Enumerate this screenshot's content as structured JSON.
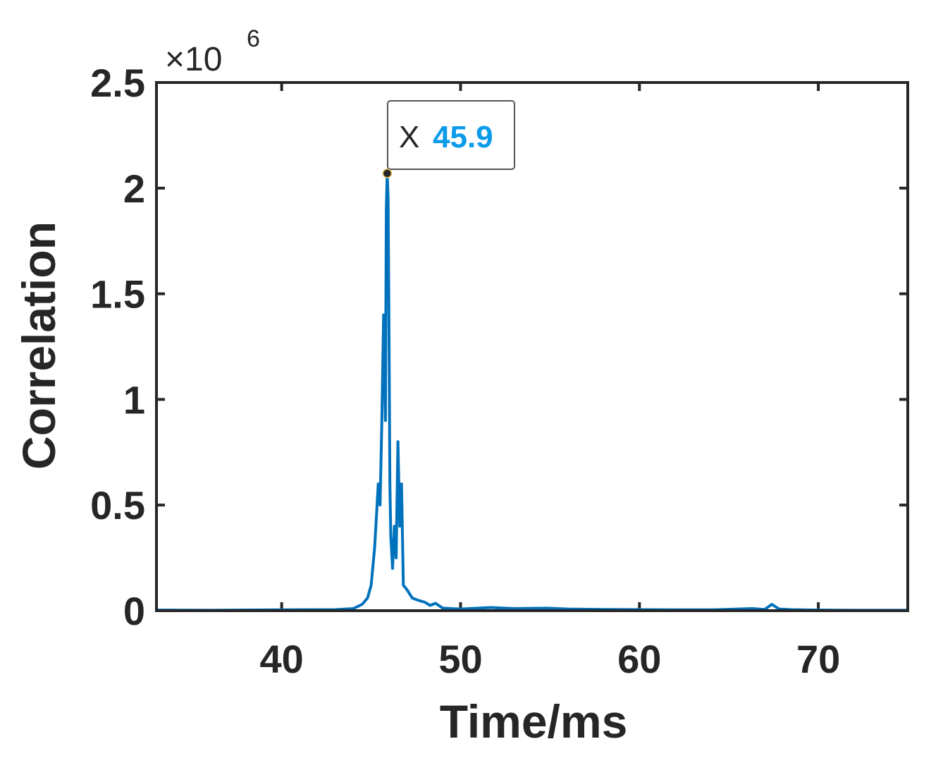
{
  "chart_data": {
    "type": "line",
    "xlabel": "Time/ms",
    "ylabel": "Correlation",
    "xlim": [
      33,
      75
    ],
    "ylim": [
      0,
      2.5
    ],
    "y_exponent_label": {
      "base": "×10",
      "power": "6"
    },
    "x_ticks": [
      40,
      50,
      60,
      70
    ],
    "x_tick_labels": [
      "40",
      "50",
      "60",
      "70"
    ],
    "y_ticks": [
      0,
      0.5,
      1,
      1.5,
      2,
      2.5
    ],
    "y_tick_labels": [
      "0",
      "0.5",
      "1",
      "1.5",
      "2",
      "2.5"
    ],
    "grid": false,
    "series": [
      {
        "color": "#0072bd",
        "x": [
          33,
          36,
          40,
          43,
          44,
          44.5,
          44.8,
          45.0,
          45.2,
          45.4,
          45.5,
          45.6,
          45.7,
          45.8,
          45.85,
          45.9,
          45.95,
          46.0,
          46.05,
          46.1,
          46.2,
          46.3,
          46.4,
          46.5,
          46.6,
          46.7,
          46.8,
          47.0,
          47.3,
          47.6,
          48.0,
          48.3,
          48.6,
          49.0,
          50.0,
          51.7,
          53,
          54.8,
          56,
          58,
          60,
          62,
          64,
          66.3,
          67.0,
          67.4,
          67.8,
          68.5,
          70,
          72,
          75
        ],
        "y": [
          0.003,
          0.002,
          0.004,
          0.005,
          0.01,
          0.03,
          0.06,
          0.12,
          0.3,
          0.6,
          0.5,
          0.9,
          1.4,
          0.9,
          1.9,
          2.07,
          1.95,
          1.3,
          0.6,
          0.35,
          0.2,
          0.4,
          0.25,
          0.8,
          0.4,
          0.6,
          0.12,
          0.1,
          0.06,
          0.05,
          0.04,
          0.025,
          0.035,
          0.012,
          0.008,
          0.015,
          0.01,
          0.012,
          0.008,
          0.006,
          0.005,
          0.004,
          0.004,
          0.01,
          0.006,
          0.03,
          0.008,
          0.005,
          0.003,
          0.002,
          0.002
        ]
      }
    ],
    "datatip": {
      "label": "X",
      "value": "45.9",
      "x": 45.9,
      "y": 2.07
    }
  },
  "colors": {
    "line": "#0072bd",
    "axes": "#262626",
    "datatip_value": "#0b9bea"
  }
}
